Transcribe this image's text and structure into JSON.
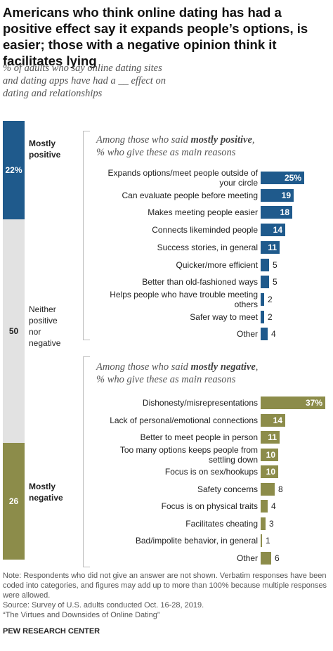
{
  "title": "Americans who think online dating has had a positive effect say it expands people’s options, is easier; those with a negative opinion think it facilitates lying",
  "subtitle": "% of adults who say online dating sites and dating apps have had a __ effect on dating and relationships",
  "chart_data": [
    {
      "type": "bar",
      "orientation": "stacked-vertical",
      "categories": [
        "Mostly positive",
        "Neither positive nor negative",
        "Mostly negative"
      ],
      "values": [
        22,
        50,
        26
      ],
      "value_labels": [
        "22%",
        "50",
        "26"
      ],
      "colors": [
        "#1f5a8c",
        "#e2e2e2",
        "#8c8c4a"
      ]
    },
    {
      "type": "bar",
      "orientation": "horizontal",
      "title": "Among those who said mostly positive, % who give these as main reasons",
      "title_parts": [
        "Among those who said ",
        "mostly positive",
        ",",
        "% who give these as main reasons"
      ],
      "categories": [
        "Expands options/meet people outside of your circle",
        "Can evaluate people before meeting",
        "Makes meeting people easier",
        "Connects likeminded people",
        "Success stories, in general",
        "Quicker/more efficient",
        "Better than old-fashioned ways",
        "Helps people who have trouble meeting others",
        "Safer way to meet",
        "Other"
      ],
      "values": [
        25,
        19,
        18,
        14,
        11,
        5,
        5,
        2,
        2,
        4
      ],
      "value_labels": [
        "25%",
        "19",
        "18",
        "14",
        "11",
        "5",
        "5",
        "2",
        "2",
        "4"
      ],
      "color": "#1f5a8c"
    },
    {
      "type": "bar",
      "orientation": "horizontal",
      "title": "Among those who said mostly negative, % who give these as main reasons",
      "title_parts": [
        "Among those who said ",
        "mostly negative",
        ",",
        "% who give these as main reasons"
      ],
      "categories": [
        "Dishonesty/misrepresentations",
        "Lack of personal/emotional connections",
        "Better to meet people in person",
        "Too many options keeps people from settling down",
        "Focus is on sex/hookups",
        "Safety concerns",
        "Focus is on physical traits",
        "Facilitates cheating",
        "Bad/impolite behavior, in general",
        "Other"
      ],
      "values": [
        37,
        14,
        11,
        10,
        10,
        8,
        4,
        3,
        1,
        6
      ],
      "value_labels": [
        "37%",
        "14",
        "11",
        "10",
        "10",
        "8",
        "4",
        "3",
        "1",
        "6"
      ],
      "color": "#8c8c4a"
    }
  ],
  "note": "Note: Respondents who did not give an answer are not shown. Verbatim responses have been coded into categories, and figures may add up to more than 100% because multiple responses were allowed.",
  "source": "Source: Survey of U.S. adults conducted Oct. 16-28, 2019.",
  "report": "“The Virtues and Downsides of Online Dating”",
  "credit": "PEW RESEARCH CENTER"
}
